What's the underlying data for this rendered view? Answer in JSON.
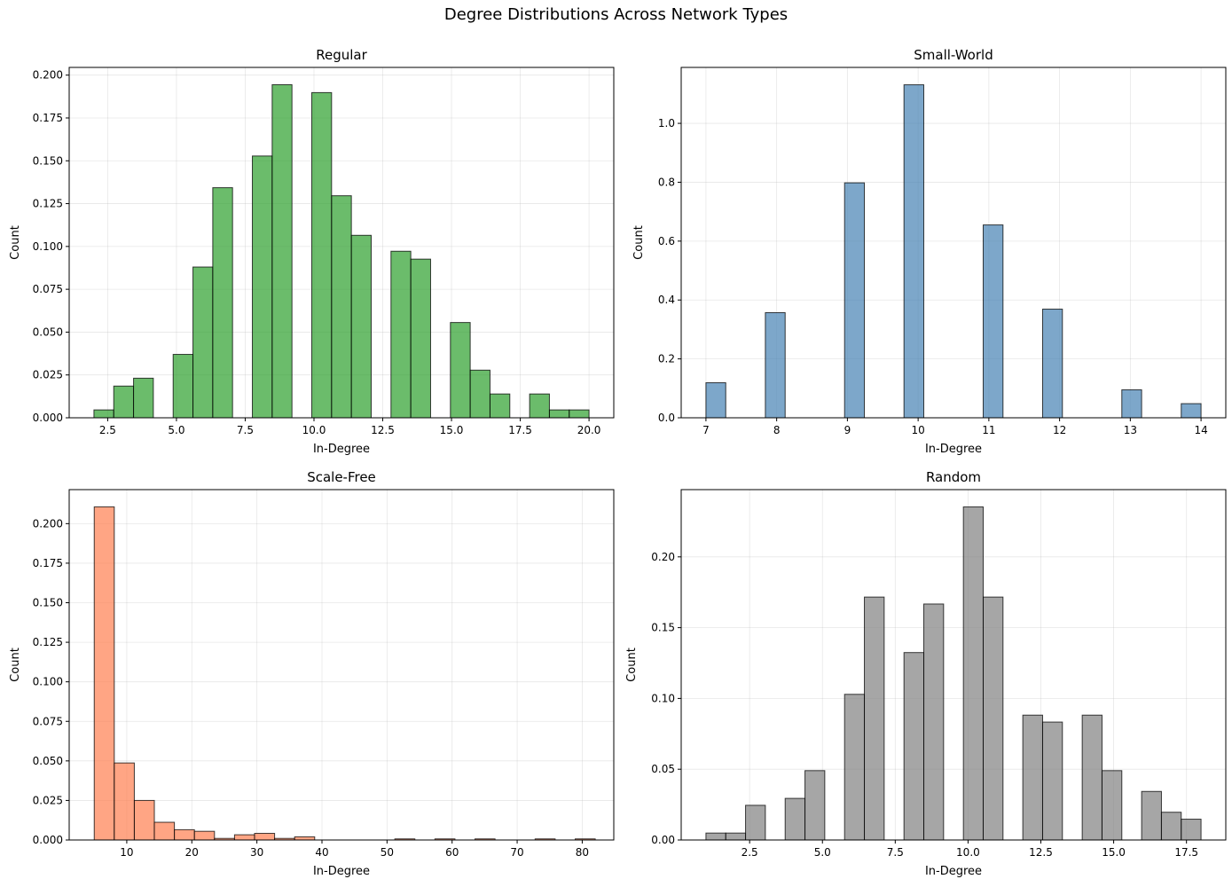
{
  "figure": {
    "title": "Degree Distributions Across Network Types"
  },
  "chart_data": [
    {
      "type": "bar",
      "title": "Regular",
      "xlabel": "In-Degree",
      "ylabel": "Count",
      "color": "#2ca02c",
      "edge_color": "#000000",
      "xlim": [
        1.1,
        20.9
      ],
      "ylim": [
        0,
        0.2045
      ],
      "xticks": [
        2.5,
        5.0,
        7.5,
        10.0,
        12.5,
        15.0,
        17.5,
        20.0
      ],
      "xtick_labels": [
        "2.5",
        "5.0",
        "7.5",
        "10.0",
        "12.5",
        "15.0",
        "17.5",
        "20.0"
      ],
      "yticks": [
        0,
        0.025,
        0.05,
        0.075,
        0.1,
        0.125,
        0.15,
        0.175,
        0.2
      ],
      "ytick_labels": [
        "0.000",
        "0.025",
        "0.050",
        "0.075",
        "0.100",
        "0.125",
        "0.150",
        "0.175",
        "0.200"
      ],
      "grid": true,
      "bins": [
        {
          "x0": 2.0,
          "x1": 2.72,
          "value": 0.0046
        },
        {
          "x0": 2.72,
          "x1": 3.44,
          "value": 0.0185
        },
        {
          "x0": 3.44,
          "x1": 4.16,
          "value": 0.0231
        },
        {
          "x0": 4.16,
          "x1": 4.88,
          "value": 0.0
        },
        {
          "x0": 4.88,
          "x1": 5.6,
          "value": 0.037
        },
        {
          "x0": 5.6,
          "x1": 6.32,
          "value": 0.088
        },
        {
          "x0": 6.32,
          "x1": 7.04,
          "value": 0.1343
        },
        {
          "x0": 7.04,
          "x1": 7.76,
          "value": 0.0
        },
        {
          "x0": 7.76,
          "x1": 8.48,
          "value": 0.1528
        },
        {
          "x0": 8.48,
          "x1": 9.2,
          "value": 0.1944
        },
        {
          "x0": 9.2,
          "x1": 9.92,
          "value": 0.0
        },
        {
          "x0": 9.92,
          "x1": 10.64,
          "value": 0.1898
        },
        {
          "x0": 10.64,
          "x1": 11.36,
          "value": 0.1296
        },
        {
          "x0": 11.36,
          "x1": 12.08,
          "value": 0.1065
        },
        {
          "x0": 12.08,
          "x1": 12.8,
          "value": 0.0
        },
        {
          "x0": 12.8,
          "x1": 13.52,
          "value": 0.0972
        },
        {
          "x0": 13.52,
          "x1": 14.24,
          "value": 0.0926
        },
        {
          "x0": 14.24,
          "x1": 14.96,
          "value": 0.0
        },
        {
          "x0": 14.96,
          "x1": 15.68,
          "value": 0.0556
        },
        {
          "x0": 15.68,
          "x1": 16.4,
          "value": 0.0278
        },
        {
          "x0": 16.4,
          "x1": 17.12,
          "value": 0.0139
        },
        {
          "x0": 17.12,
          "x1": 17.84,
          "value": 0.0
        },
        {
          "x0": 17.84,
          "x1": 18.56,
          "value": 0.0139
        },
        {
          "x0": 18.56,
          "x1": 19.28,
          "value": 0.0046
        },
        {
          "x0": 19.28,
          "x1": 20.0,
          "value": 0.0046
        }
      ]
    },
    {
      "type": "bar",
      "title": "Small-World",
      "xlabel": "In-Degree",
      "ylabel": "Count",
      "color": "#4682b4",
      "edge_color": "#000000",
      "xlim": [
        6.65,
        14.35
      ],
      "ylim": [
        0,
        1.19
      ],
      "xticks": [
        7,
        8,
        9,
        10,
        11,
        12,
        13,
        14
      ],
      "xtick_labels": [
        "7",
        "8",
        "9",
        "10",
        "11",
        "12",
        "13",
        "14"
      ],
      "yticks": [
        0,
        0.2,
        0.4,
        0.6,
        0.8,
        1.0
      ],
      "ytick_labels": [
        "0.0",
        "0.2",
        "0.4",
        "0.6",
        "0.8",
        "1.0"
      ],
      "grid": true,
      "bins": [
        {
          "x0": 7.0,
          "x1": 7.28,
          "value": 0.119
        },
        {
          "x0": 7.84,
          "x1": 8.12,
          "value": 0.357
        },
        {
          "x0": 8.96,
          "x1": 9.24,
          "value": 0.798
        },
        {
          "x0": 9.8,
          "x1": 10.08,
          "value": 1.131
        },
        {
          "x0": 10.92,
          "x1": 11.2,
          "value": 0.655
        },
        {
          "x0": 11.76,
          "x1": 12.04,
          "value": 0.369
        },
        {
          "x0": 12.88,
          "x1": 13.16,
          "value": 0.095
        },
        {
          "x0": 13.72,
          "x1": 14.0,
          "value": 0.048
        }
      ]
    },
    {
      "type": "bar",
      "title": "Scale-Free",
      "xlabel": "In-Degree",
      "ylabel": "Count",
      "color": "#ff7f50",
      "edge_color": "#000000",
      "xlim": [
        1.15,
        84.85
      ],
      "ylim": [
        0,
        0.2215
      ],
      "xticks": [
        10,
        20,
        30,
        40,
        50,
        60,
        70,
        80
      ],
      "xtick_labels": [
        "10",
        "20",
        "30",
        "40",
        "50",
        "60",
        "70",
        "80"
      ],
      "yticks": [
        0,
        0.025,
        0.05,
        0.075,
        0.1,
        0.125,
        0.15,
        0.175,
        0.2
      ],
      "ytick_labels": [
        "0.000",
        "0.025",
        "0.050",
        "0.075",
        "0.100",
        "0.125",
        "0.150",
        "0.175",
        "0.200"
      ],
      "grid": true,
      "bins": [
        {
          "x0": 5.0,
          "x1": 8.08,
          "value": 0.2106
        },
        {
          "x0": 8.08,
          "x1": 11.16,
          "value": 0.0487
        },
        {
          "x0": 11.16,
          "x1": 14.24,
          "value": 0.025
        },
        {
          "x0": 14.24,
          "x1": 17.32,
          "value": 0.0112
        },
        {
          "x0": 17.32,
          "x1": 20.4,
          "value": 0.0065
        },
        {
          "x0": 20.4,
          "x1": 23.48,
          "value": 0.0055
        },
        {
          "x0": 23.48,
          "x1": 26.56,
          "value": 0.001
        },
        {
          "x0": 26.56,
          "x1": 29.64,
          "value": 0.0033
        },
        {
          "x0": 29.64,
          "x1": 32.72,
          "value": 0.0042
        },
        {
          "x0": 32.72,
          "x1": 35.8,
          "value": 0.001
        },
        {
          "x0": 35.8,
          "x1": 38.88,
          "value": 0.002
        },
        {
          "x0": 38.88,
          "x1": 41.96,
          "value": 0.0
        },
        {
          "x0": 41.96,
          "x1": 45.04,
          "value": 0.0
        },
        {
          "x0": 45.04,
          "x1": 48.12,
          "value": 0.0
        },
        {
          "x0": 48.12,
          "x1": 51.2,
          "value": 0.0
        },
        {
          "x0": 51.2,
          "x1": 54.28,
          "value": 0.0007
        },
        {
          "x0": 54.28,
          "x1": 57.36,
          "value": 0.0
        },
        {
          "x0": 57.36,
          "x1": 60.44,
          "value": 0.0007
        },
        {
          "x0": 60.44,
          "x1": 63.52,
          "value": 0.0
        },
        {
          "x0": 63.52,
          "x1": 66.6,
          "value": 0.0007
        },
        {
          "x0": 66.6,
          "x1": 69.68,
          "value": 0.0
        },
        {
          "x0": 69.68,
          "x1": 72.76,
          "value": 0.0
        },
        {
          "x0": 72.76,
          "x1": 75.84,
          "value": 0.0007
        },
        {
          "x0": 75.84,
          "x1": 78.92,
          "value": 0.0
        },
        {
          "x0": 78.92,
          "x1": 82.0,
          "value": 0.0007
        }
      ]
    },
    {
      "type": "bar",
      "title": "Random",
      "xlabel": "In-Degree",
      "ylabel": "Count",
      "color": "#808080",
      "edge_color": "#000000",
      "xlim": [
        0.15,
        18.85
      ],
      "ylim": [
        0,
        0.2475
      ],
      "xticks": [
        2.5,
        5.0,
        7.5,
        10.0,
        12.5,
        15.0,
        17.5
      ],
      "xtick_labels": [
        "2.5",
        "5.0",
        "7.5",
        "10.0",
        "12.5",
        "15.0",
        "17.5"
      ],
      "yticks": [
        0,
        0.05,
        0.1,
        0.15,
        0.2
      ],
      "ytick_labels": [
        "0.00",
        "0.05",
        "0.10",
        "0.15",
        "0.20"
      ],
      "grid": true,
      "bins": [
        {
          "x0": 1.0,
          "x1": 1.68,
          "value": 0.0049
        },
        {
          "x0": 1.68,
          "x1": 2.36,
          "value": 0.0049
        },
        {
          "x0": 2.36,
          "x1": 3.04,
          "value": 0.0245
        },
        {
          "x0": 3.04,
          "x1": 3.72,
          "value": 0.0
        },
        {
          "x0": 3.72,
          "x1": 4.4,
          "value": 0.0294
        },
        {
          "x0": 4.4,
          "x1": 5.08,
          "value": 0.049
        },
        {
          "x0": 5.08,
          "x1": 5.76,
          "value": 0.0
        },
        {
          "x0": 5.76,
          "x1": 6.44,
          "value": 0.1029
        },
        {
          "x0": 6.44,
          "x1": 7.12,
          "value": 0.1716
        },
        {
          "x0": 7.12,
          "x1": 7.8,
          "value": 0.0
        },
        {
          "x0": 7.8,
          "x1": 8.48,
          "value": 0.1324
        },
        {
          "x0": 8.48,
          "x1": 9.16,
          "value": 0.1667
        },
        {
          "x0": 9.16,
          "x1": 9.84,
          "value": 0.0
        },
        {
          "x0": 9.84,
          "x1": 10.52,
          "value": 0.2353
        },
        {
          "x0": 10.52,
          "x1": 11.2,
          "value": 0.1716
        },
        {
          "x0": 11.2,
          "x1": 11.88,
          "value": 0.0
        },
        {
          "x0": 11.88,
          "x1": 12.56,
          "value": 0.0882
        },
        {
          "x0": 12.56,
          "x1": 13.24,
          "value": 0.0833
        },
        {
          "x0": 13.24,
          "x1": 13.92,
          "value": 0.0
        },
        {
          "x0": 13.92,
          "x1": 14.6,
          "value": 0.0882
        },
        {
          "x0": 14.6,
          "x1": 15.28,
          "value": 0.049
        },
        {
          "x0": 15.28,
          "x1": 15.96,
          "value": 0.0
        },
        {
          "x0": 15.96,
          "x1": 16.64,
          "value": 0.0343
        },
        {
          "x0": 16.64,
          "x1": 17.32,
          "value": 0.0196
        },
        {
          "x0": 17.32,
          "x1": 18.0,
          "value": 0.0147
        }
      ]
    }
  ]
}
